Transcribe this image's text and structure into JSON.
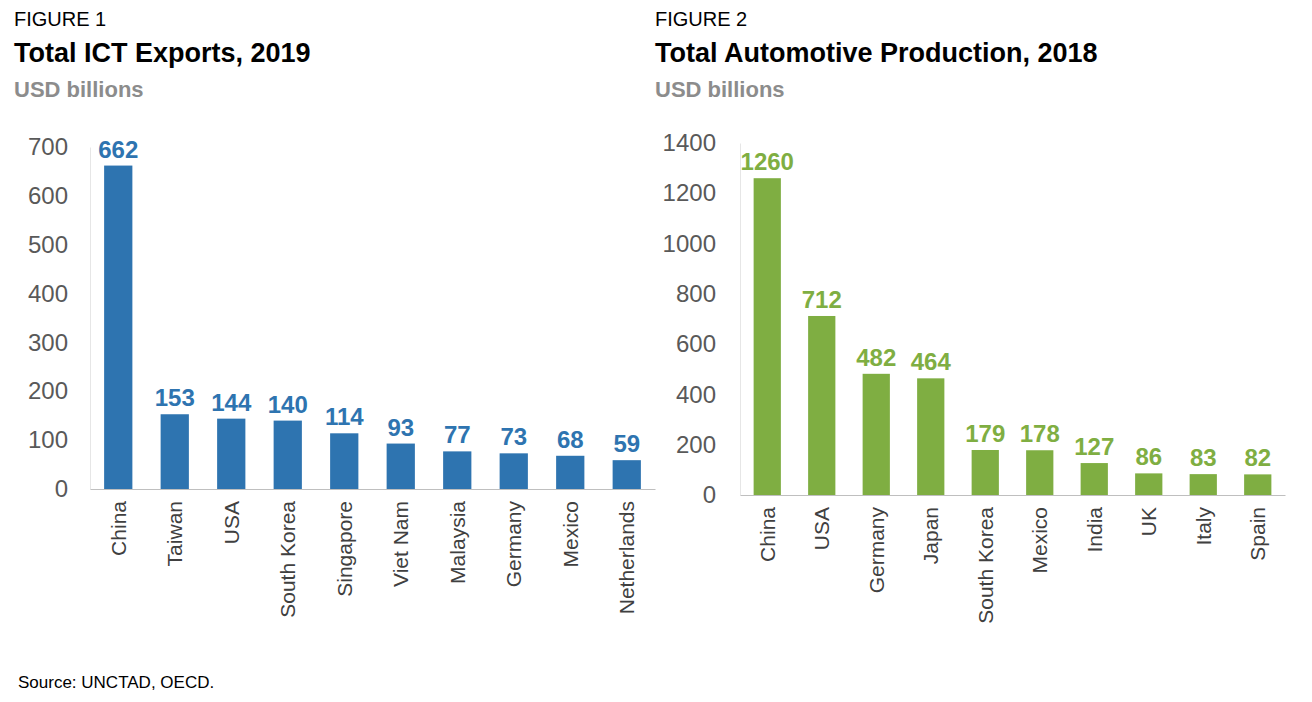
{
  "chart_data": [
    {
      "type": "bar",
      "annotations": [
        "FIGURE 1"
      ],
      "title": "Total ICT Exports, 2019",
      "subtitle": "USD billions",
      "categories": [
        "China",
        "Taiwan",
        "USA",
        "South Korea",
        "Singapore",
        "Viet Nam",
        "Malaysia",
        "Germany",
        "Mexico",
        "Netherlands"
      ],
      "values": [
        662,
        153,
        144,
        140,
        114,
        93,
        77,
        73,
        68,
        59
      ],
      "color": "#2e74b0",
      "ylim": [
        0,
        700
      ],
      "yticks": [
        0,
        100,
        200,
        300,
        400,
        500,
        600,
        700
      ],
      "grid": false,
      "data_labels": true
    },
    {
      "type": "bar",
      "annotations": [
        "FIGURE 2"
      ],
      "title": "Total Automotive Production, 2018",
      "subtitle": "USD billions",
      "categories": [
        "China",
        "USA",
        "Germany",
        "Japan",
        "South Korea",
        "Mexico",
        "India",
        "UK",
        "Italy",
        "Spain"
      ],
      "values": [
        1260,
        712,
        482,
        464,
        179,
        178,
        127,
        86,
        83,
        82
      ],
      "color": "#7fae42",
      "ylim": [
        0,
        1400
      ],
      "yticks": [
        0,
        200,
        400,
        600,
        800,
        1000,
        1200,
        1400
      ],
      "grid": false,
      "data_labels": true
    }
  ],
  "source": "Source: UNCTAD, OECD."
}
